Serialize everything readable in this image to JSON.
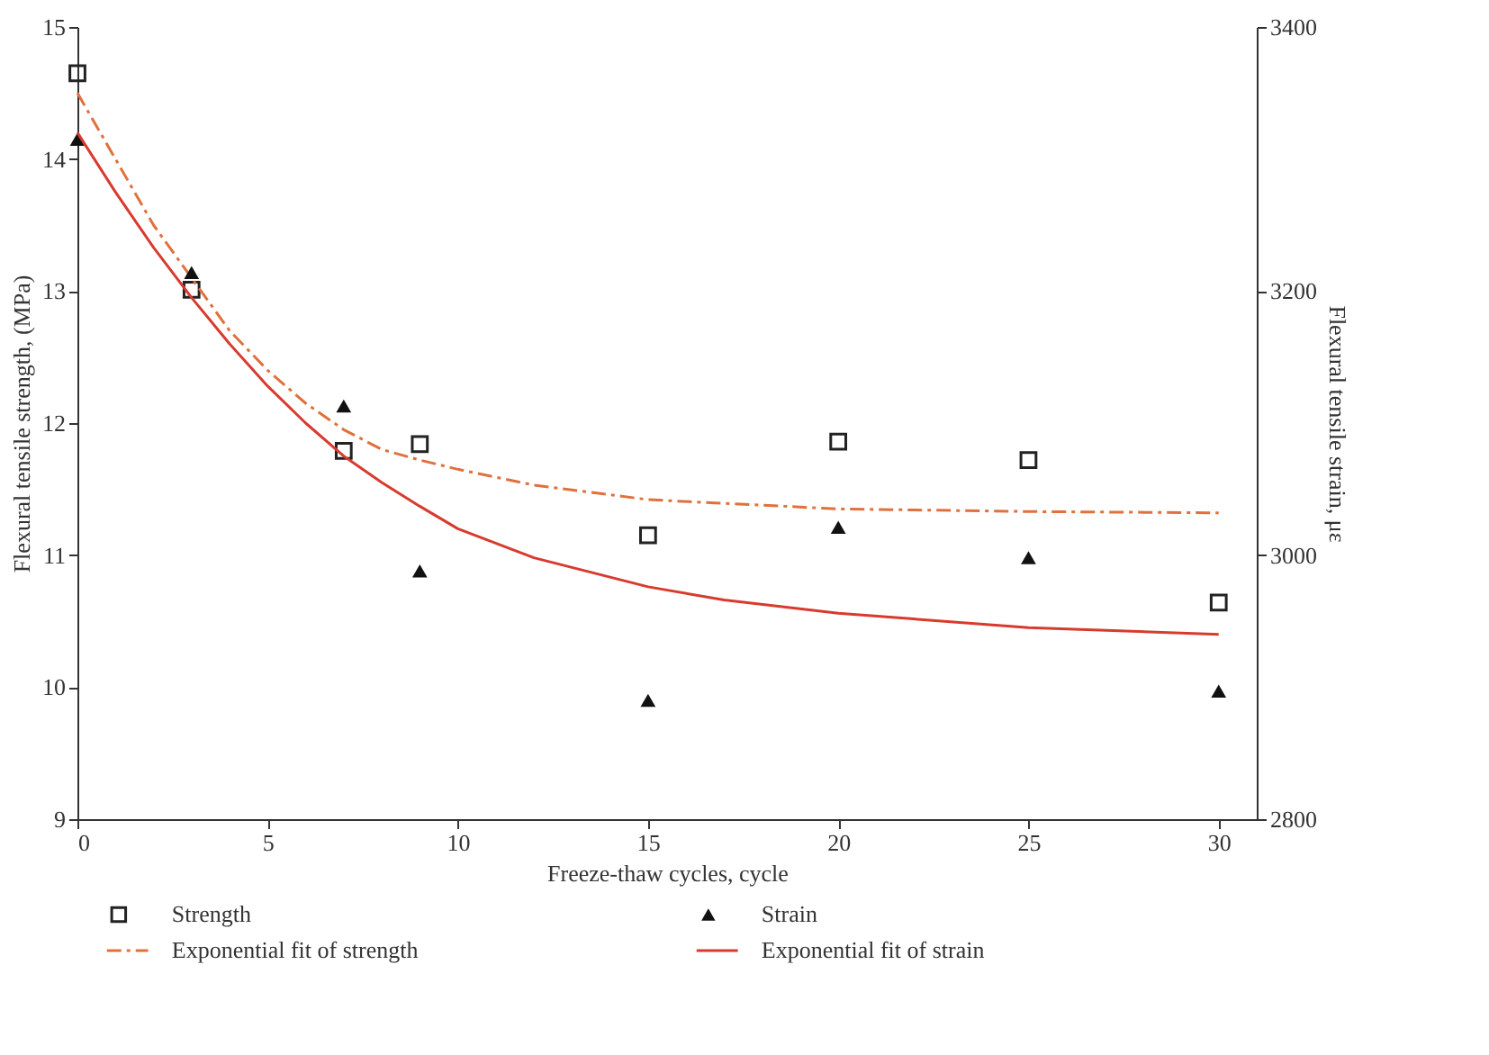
{
  "chart_data": {
    "type": "scatter",
    "xlabel": "Freeze-thaw cycles, cycle",
    "ylabel": "Flexural tensile strength, (MPa)",
    "y2label": "Flexural tensile strain, με",
    "xlim": [
      0,
      31
    ],
    "xticks": [
      0,
      5,
      10,
      15,
      20,
      25,
      30
    ],
    "ylim": [
      9,
      15
    ],
    "yticks": [
      9,
      10,
      11,
      12,
      13,
      14,
      15
    ],
    "y2lim": [
      2800,
      3400
    ],
    "y2ticks": [
      2800,
      3000,
      3200,
      3400
    ],
    "grid": false,
    "legend": "bottom",
    "series": [
      {
        "name": "Strength",
        "marker": "square",
        "color": "#222222",
        "x": [
          0,
          3,
          7,
          9,
          15,
          20,
          25,
          30
        ],
        "values": [
          14.65,
          13.01,
          11.79,
          11.84,
          11.15,
          11.86,
          11.72,
          10.64
        ]
      },
      {
        "name": "Strain",
        "marker": "triangle",
        "axis": "y2",
        "color": "#111111",
        "x": [
          0,
          3,
          7,
          9,
          15,
          20,
          25,
          30
        ],
        "values": [
          3315,
          3214,
          3113,
          2988,
          2890,
          3021,
          2998,
          2897
        ]
      },
      {
        "name": "Exponential fit of strength",
        "type": "line",
        "line_style": "dashed",
        "color": "#e0703c",
        "x": [
          0,
          1,
          2,
          3,
          4,
          5,
          6,
          7,
          8,
          9,
          10,
          12,
          15,
          20,
          25,
          30
        ],
        "values": [
          14.5,
          14.0,
          13.5,
          13.1,
          12.7,
          12.4,
          12.15,
          11.95,
          11.8,
          11.72,
          11.65,
          11.53,
          11.42,
          11.35,
          11.33,
          11.32
        ]
      },
      {
        "name": "Exponential fit of strain",
        "type": "line",
        "line_style": "solid",
        "axis": "y2",
        "color": "#d83a2e",
        "x": [
          0,
          1,
          2,
          3,
          4,
          5,
          6,
          7,
          8,
          9,
          10,
          12,
          15,
          17,
          20,
          25,
          30
        ],
        "values": [
          3320,
          3275,
          3233,
          3195,
          3160,
          3128,
          3100,
          3075,
          3055,
          3037,
          3020,
          2998,
          2976,
          2966,
          2956,
          2945,
          2940
        ]
      }
    ]
  }
}
